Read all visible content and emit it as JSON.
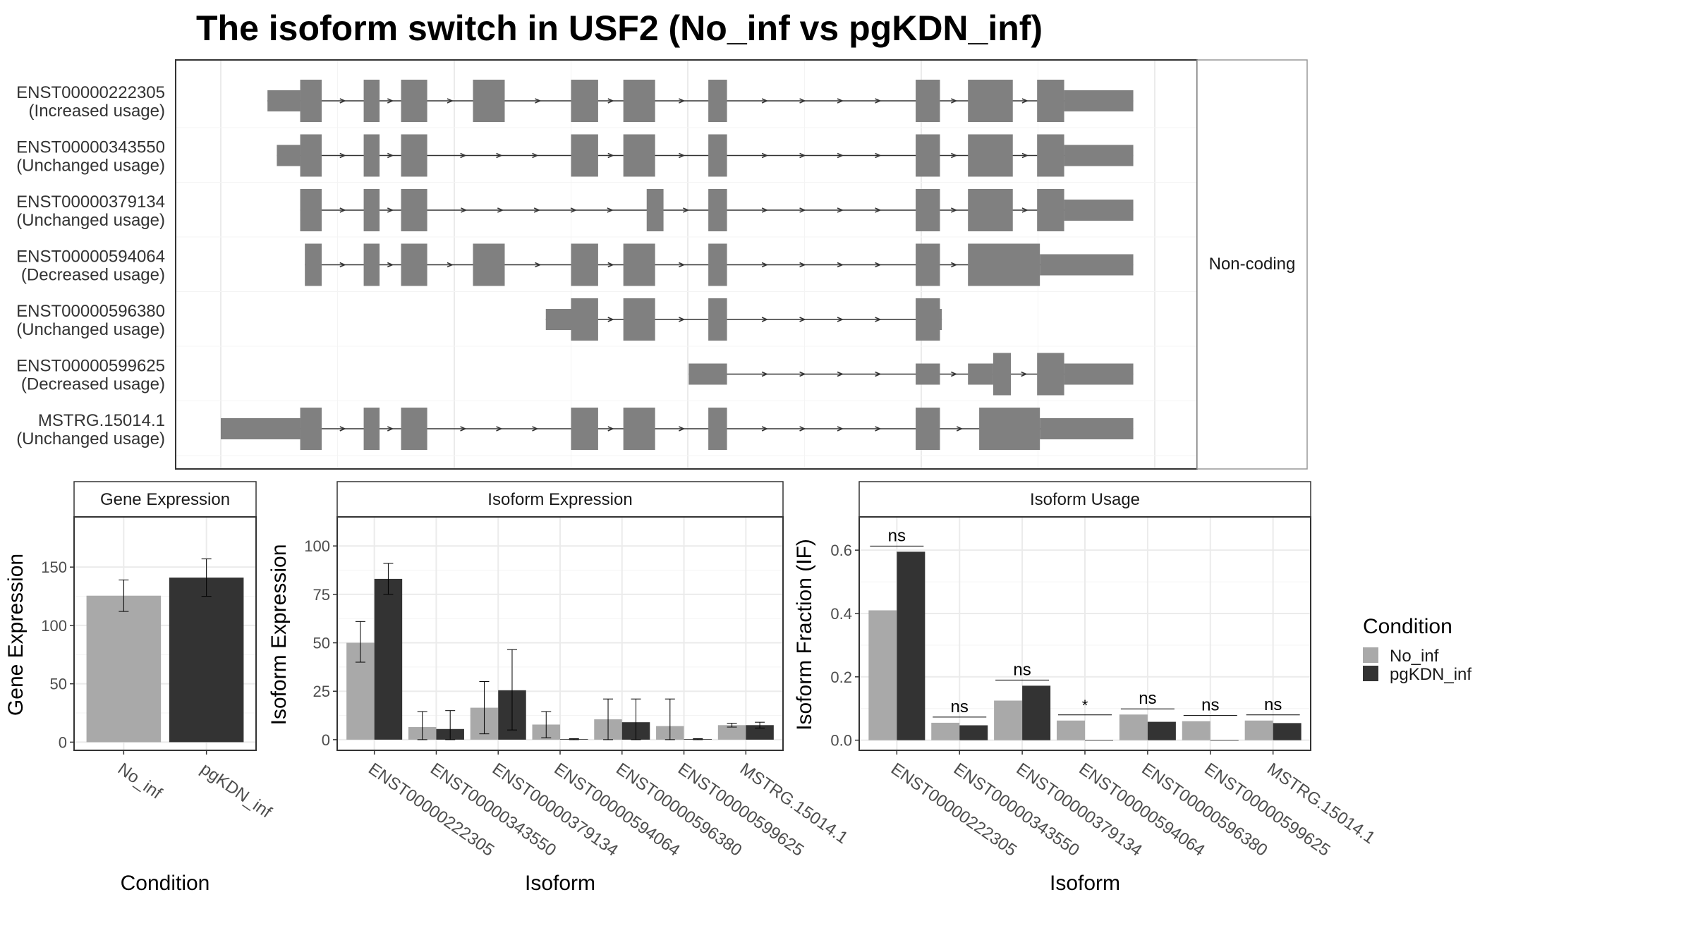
{
  "title": "The isoform switch in USF2 (No_inf vs pgKDN_inf)",
  "colors": {
    "No_inf": "#a9a9a9",
    "pgKDN_inf": "#333333",
    "exon": "#808080",
    "grid": "#ebebeb",
    "frame": "#333333",
    "strip_border": "#999999"
  },
  "chart_data": [
    {
      "type": "gene-structure",
      "facet_label": "Non-coding",
      "x_range": [
        0,
        1000
      ],
      "transcripts": [
        {
          "id": "ENST00000222305",
          "usage": "(Increased usage)",
          "exons": [
            [
              50,
              85,
              "t"
            ],
            [
              85,
              108,
              "c"
            ],
            [
              153,
              170,
              "c"
            ],
            [
              193,
              221,
              "c"
            ],
            [
              270,
              304,
              "c"
            ],
            [
              375,
              404,
              "c"
            ],
            [
              431,
              465,
              "c"
            ],
            [
              522,
              542,
              "c"
            ],
            [
              744,
              770,
              "c"
            ],
            [
              800,
              848,
              "c"
            ],
            [
              874,
              903,
              "c"
            ],
            [
              903,
              977,
              "t"
            ]
          ]
        },
        {
          "id": "ENST00000343550",
          "usage": "(Unchanged usage)",
          "exons": [
            [
              60,
              85,
              "t"
            ],
            [
              85,
              108,
              "c"
            ],
            [
              153,
              170,
              "c"
            ],
            [
              193,
              221,
              "c"
            ],
            [
              375,
              404,
              "c"
            ],
            [
              431,
              465,
              "c"
            ],
            [
              522,
              542,
              "c"
            ],
            [
              744,
              770,
              "c"
            ],
            [
              800,
              848,
              "c"
            ],
            [
              874,
              903,
              "c"
            ],
            [
              903,
              977,
              "t"
            ]
          ]
        },
        {
          "id": "ENST00000379134",
          "usage": "(Unchanged usage)",
          "exons": [
            [
              85,
              108,
              "c"
            ],
            [
              153,
              170,
              "c"
            ],
            [
              193,
              221,
              "c"
            ],
            [
              456,
              474,
              "c"
            ],
            [
              522,
              542,
              "c"
            ],
            [
              744,
              770,
              "c"
            ],
            [
              800,
              848,
              "c"
            ],
            [
              874,
              903,
              "c"
            ],
            [
              903,
              977,
              "t"
            ]
          ]
        },
        {
          "id": "ENST00000594064",
          "usage": "(Decreased usage)",
          "exons": [
            [
              90,
              108,
              "c"
            ],
            [
              153,
              170,
              "c"
            ],
            [
              193,
              221,
              "c"
            ],
            [
              270,
              304,
              "c"
            ],
            [
              375,
              404,
              "c"
            ],
            [
              431,
              465,
              "c"
            ],
            [
              522,
              542,
              "c"
            ],
            [
              744,
              770,
              "c"
            ],
            [
              800,
              877,
              "c"
            ],
            [
              877,
              977,
              "t"
            ]
          ]
        },
        {
          "id": "ENST00000596380",
          "usage": "(Unchanged usage)",
          "exons": [
            [
              348,
              375,
              "t"
            ],
            [
              375,
              404,
              "c"
            ],
            [
              431,
              465,
              "c"
            ],
            [
              522,
              542,
              "c"
            ],
            [
              744,
              770,
              "c"
            ],
            [
              770,
              772,
              "t"
            ]
          ]
        },
        {
          "id": "ENST00000599625",
          "usage": "(Decreased usage)",
          "exons": [
            [
              501,
              542,
              "t"
            ],
            [
              744,
              770,
              "t"
            ],
            [
              800,
              827,
              "t"
            ],
            [
              827,
              846,
              "c"
            ],
            [
              874,
              903,
              "c"
            ],
            [
              903,
              977,
              "t"
            ]
          ]
        },
        {
          "id": "MSTRG.15014.1",
          "usage": "(Unchanged usage)",
          "exons": [
            [
              0,
              85,
              "t"
            ],
            [
              85,
              108,
              "c"
            ],
            [
              153,
              170,
              "c"
            ],
            [
              193,
              221,
              "c"
            ],
            [
              375,
              404,
              "c"
            ],
            [
              431,
              465,
              "c"
            ],
            [
              522,
              542,
              "c"
            ],
            [
              744,
              770,
              "c"
            ],
            [
              812,
              877,
              "c"
            ],
            [
              877,
              977,
              "t"
            ]
          ]
        }
      ]
    },
    {
      "type": "bar",
      "strip_title": "Gene Expression",
      "xlabel": "Condition",
      "ylabel": "Gene Expression",
      "ylim": [
        -7,
        193
      ],
      "yticks": [
        0,
        50,
        100,
        150
      ],
      "categories": [
        "No_inf",
        "pgKDN_inf"
      ],
      "values": [
        125.5,
        141
      ],
      "err_low": [
        112,
        125
      ],
      "err_high": [
        139,
        157
      ]
    },
    {
      "type": "bar",
      "strip_title": "Isoform Expression",
      "xlabel": "Isoform",
      "ylabel": "Isoform Expression",
      "ylim": [
        -5.5,
        115
      ],
      "yticks": [
        0,
        25,
        50,
        75,
        100
      ],
      "categories": [
        "ENST00000222305",
        "ENST00000343550",
        "ENST00000379134",
        "ENST00000594064",
        "ENST00000596380",
        "ENST00000599625",
        "MSTRG.15014.1"
      ],
      "series": [
        {
          "name": "No_inf",
          "values": [
            50,
            6.5,
            16.5,
            7.8,
            10.5,
            7,
            7.5
          ],
          "err_low": [
            40,
            0,
            3,
            1,
            0,
            0,
            6.5
          ],
          "err_high": [
            61,
            14.5,
            30,
            14.5,
            21,
            21,
            8.5
          ]
        },
        {
          "name": "pgKDN_inf",
          "values": [
            83,
            5.5,
            25.5,
            0.3,
            9,
            0.3,
            7.5
          ],
          "err_low": [
            75,
            0,
            5,
            0,
            0,
            0,
            6
          ],
          "err_high": [
            91,
            15,
            46.5,
            0.5,
            21,
            0.5,
            9
          ]
        }
      ]
    },
    {
      "type": "bar",
      "strip_title": "Isoform Usage",
      "xlabel": "Isoform",
      "ylabel": "Isoform Fraction (IF)",
      "ylim": [
        -0.032,
        0.705
      ],
      "yticks": [
        "0.0",
        "0.2",
        "0.4",
        "0.6"
      ],
      "categories": [
        "ENST00000222305",
        "ENST00000343550",
        "ENST00000379134",
        "ENST00000594064",
        "ENST00000596380",
        "ENST00000599625",
        "MSTRG.15014.1"
      ],
      "series": [
        {
          "name": "No_inf",
          "values": [
            0.41,
            0.055,
            0.125,
            0.062,
            0.081,
            0.06,
            0.062
          ]
        },
        {
          "name": "pgKDN_inf",
          "values": [
            0.595,
            0.047,
            0.172,
            0.0,
            0.058,
            0.0,
            0.054
          ]
        }
      ],
      "significance": [
        "ns",
        "ns",
        "ns",
        "*",
        "ns",
        "ns",
        "ns"
      ]
    }
  ],
  "legend": {
    "title": "Condition",
    "items": [
      "No_inf",
      "pgKDN_inf"
    ]
  }
}
